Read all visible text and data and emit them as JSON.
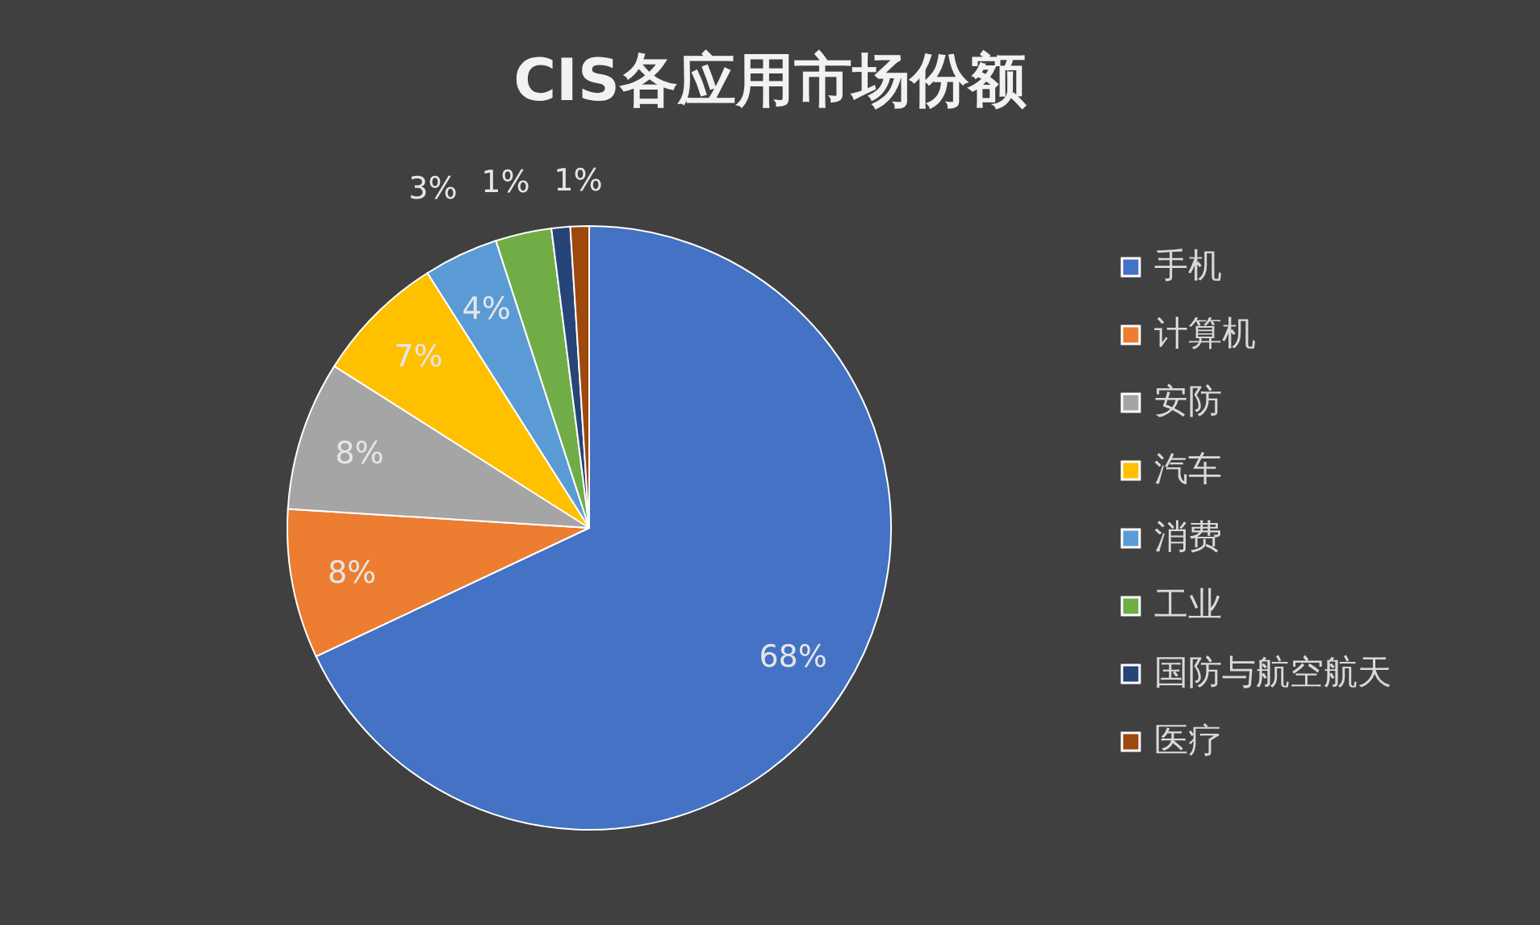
{
  "chart_data": {
    "type": "pie",
    "title": "CIS各应用市场份额",
    "categories": [
      "手机",
      "计算机",
      "安防",
      "汽车",
      "消费",
      "工业",
      "国防与航空航天",
      "医疗"
    ],
    "values": [
      68,
      8,
      8,
      7,
      4,
      3,
      1,
      1
    ],
    "colors": [
      "#4472c4",
      "#ed7d31",
      "#a5a5a5",
      "#ffc000",
      "#5b9bd5",
      "#70ad47",
      "#264478",
      "#9e480e"
    ],
    "value_labels": [
      "68%",
      "8%",
      "8%",
      "7%",
      "4%",
      "3%",
      "1%",
      "1%"
    ],
    "legend": "right"
  }
}
